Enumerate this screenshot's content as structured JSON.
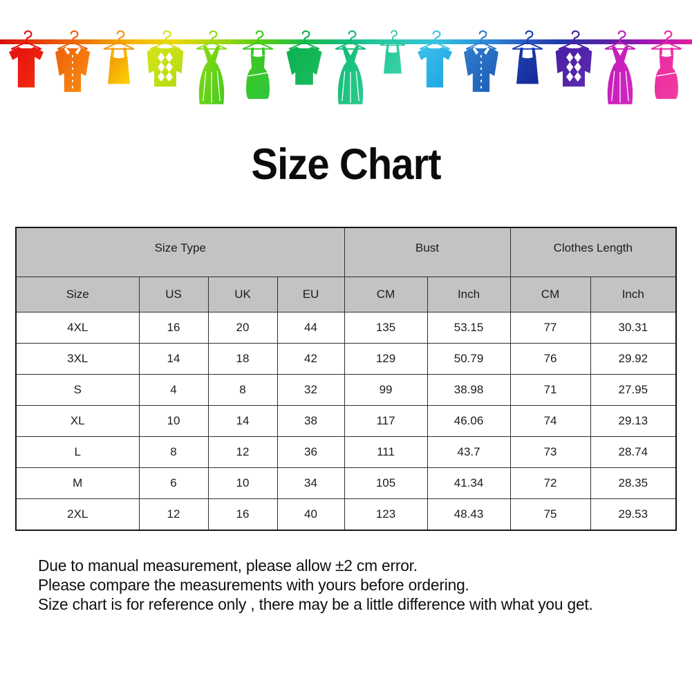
{
  "title": "Size Chart",
  "clothesline": {
    "rope_colors": [
      "#d40f12",
      "#e8420a",
      "#f07c08",
      "#f5b303",
      "#eed505",
      "#a8d90f",
      "#55cb1a",
      "#1dbb4a",
      "#14bd7c",
      "#2bc9a8",
      "#33c3dc",
      "#2e96dc",
      "#2f62c8",
      "#2236a8",
      "#5b21a5",
      "#a816b4",
      "#e01f9f"
    ],
    "items": [
      {
        "name": "red-tshirt",
        "type": "t-shirt",
        "color": "#e51010",
        "color2": "#f32d0e"
      },
      {
        "name": "orange-shirt",
        "type": "shirt",
        "color": "#ee5f0a",
        "color2": "#f98e12"
      },
      {
        "name": "amber-tank-top",
        "type": "tank",
        "color": "#f2940a",
        "color2": "#fcd402"
      },
      {
        "name": "yellowgreen-argyle-sweater",
        "type": "sweater-argyle",
        "color": "#d5e41c",
        "color2": "#b4da12"
      },
      {
        "name": "green-dress",
        "type": "dress",
        "color": "#8cdb12",
        "color2": "#46cb1d"
      },
      {
        "name": "green-tank-dress",
        "type": "tank-dress",
        "color": "#3ecb1f",
        "color2": "#2ec43e"
      },
      {
        "name": "green-sweater",
        "type": "sweater",
        "color": "#0cb14e",
        "color2": "#1bbc5e"
      },
      {
        "name": "teal-dress",
        "type": "dress",
        "color": "#0fbc72",
        "color2": "#2bcb90"
      },
      {
        "name": "teal-tank-top",
        "type": "tank",
        "color": "#27c897",
        "color2": "#3cd3aa",
        "small": true
      },
      {
        "name": "cyan-tshirt",
        "type": "t-shirt",
        "color": "#3ec0ea",
        "color2": "#1ba4e2"
      },
      {
        "name": "blue-shirt",
        "type": "shirt",
        "color": "#2e7ccb",
        "color2": "#1f5cb8"
      },
      {
        "name": "navy-tank-top",
        "type": "tank",
        "color": "#1e3eb0",
        "color2": "#142a96"
      },
      {
        "name": "purple-argyle-sweater",
        "type": "sweater-argyle",
        "color": "#4a1fa5",
        "color2": "#5d2bb0"
      },
      {
        "name": "magenta-dress",
        "type": "dress",
        "color": "#c21cba",
        "color2": "#d326c0"
      },
      {
        "name": "pink-tank-dress",
        "type": "tank-dress",
        "color": "#ea28a4",
        "color2": "#f03d9e"
      }
    ]
  },
  "table": {
    "group_headers": [
      {
        "label": "Size Type",
        "span": "4"
      },
      {
        "label": "Bust",
        "span": "2"
      },
      {
        "label": "Clothes Length",
        "span": "2"
      }
    ],
    "columns": [
      "Size",
      "US",
      "UK",
      "EU",
      "CM",
      "Inch",
      "CM",
      "Inch"
    ],
    "rows": [
      [
        "4XL",
        "16",
        "20",
        "44",
        "135",
        "53.15",
        "77",
        "30.31"
      ],
      [
        "3XL",
        "14",
        "18",
        "42",
        "129",
        "50.79",
        "76",
        "29.92"
      ],
      [
        "S",
        "4",
        "8",
        "32",
        "99",
        "38.98",
        "71",
        "27.95"
      ],
      [
        "XL",
        "10",
        "14",
        "38",
        "117",
        "46.06",
        "74",
        "29.13"
      ],
      [
        "L",
        "8",
        "12",
        "36",
        "111",
        "43.7",
        "73",
        "28.74"
      ],
      [
        "M",
        "6",
        "10",
        "34",
        "105",
        "41.34",
        "72",
        "28.35"
      ],
      [
        "2XL",
        "12",
        "16",
        "40",
        "123",
        "48.43",
        "75",
        "29.53"
      ]
    ]
  },
  "notes": {
    "line1": "Due to manual measurement, please allow ±2 cm error.",
    "line2": "Please compare the measurements with yours before ordering.",
    "line3": "Size chart is for reference only , there may be a little difference with what you get."
  },
  "colors": {
    "background": "#ffffff",
    "header_bg": "#c3c3c3",
    "table_border": "#2e2e2e",
    "text": "#101010"
  }
}
